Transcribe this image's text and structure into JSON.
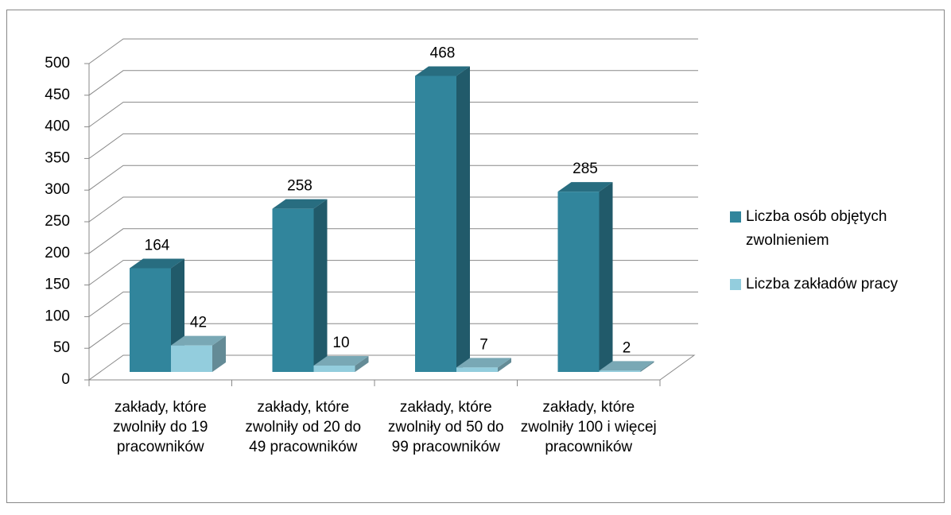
{
  "chart_data": {
    "type": "bar",
    "categories": [
      "zakłady, które zwolniły do 19 pracowników",
      "zakłady, które zwolniły od 20 do 49 pracowników",
      "zakłady, które zwolniły od 50 do 99 pracowników",
      "zakłady, które zwolniły 100 i więcej pracowników"
    ],
    "series": [
      {
        "name": "Liczba osób objętych zwolnieniem",
        "color": "#31859c",
        "values": [
          164,
          258,
          468,
          285
        ]
      },
      {
        "name": "Liczba zakładów pracy",
        "color": "#93cddd",
        "values": [
          42,
          10,
          7,
          2
        ]
      }
    ],
    "ylim": [
      0,
      500
    ],
    "yticks": [
      0,
      50,
      100,
      150,
      200,
      250,
      300,
      350,
      400,
      450,
      500
    ],
    "grid": true,
    "legend": "right"
  }
}
